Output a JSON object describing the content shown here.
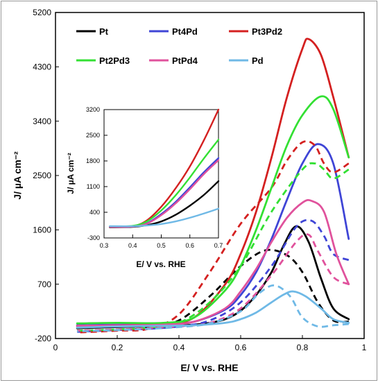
{
  "chart_data": [
    {
      "type": "line",
      "xlabel": "E/ V vs. RHE",
      "ylabel": "J/ µA cm⁻²",
      "xlim": [
        0,
        1
      ],
      "ylim": [
        -200,
        5200
      ],
      "xticks": [
        "0",
        "0.2",
        "0.4",
        "0.6",
        "0.8",
        "1"
      ],
      "yticks": [
        "-200",
        "700",
        "1600",
        "2500",
        "3400",
        "4300",
        "5200"
      ],
      "legend_placement": "top",
      "series": [
        {
          "name": "Pt",
          "color": "#000000",
          "forward": [
            [
              0.07,
              -30
            ],
            [
              0.2,
              -10
            ],
            [
              0.35,
              10
            ],
            [
              0.45,
              30
            ],
            [
              0.5,
              60
            ],
            [
              0.55,
              120
            ],
            [
              0.6,
              260
            ],
            [
              0.65,
              520
            ],
            [
              0.7,
              900
            ],
            [
              0.74,
              1350
            ],
            [
              0.78,
              1660
            ],
            [
              0.82,
              1400
            ],
            [
              0.86,
              800
            ],
            [
              0.9,
              300
            ],
            [
              0.95,
              120
            ]
          ],
          "backward": [
            [
              0.95,
              80
            ],
            [
              0.9,
              100
            ],
            [
              0.85,
              400
            ],
            [
              0.8,
              900
            ],
            [
              0.75,
              1180
            ],
            [
              0.68,
              1260
            ],
            [
              0.6,
              1000
            ],
            [
              0.5,
              500
            ],
            [
              0.4,
              100
            ],
            [
              0.3,
              -20
            ],
            [
              0.2,
              -60
            ],
            [
              0.07,
              -80
            ]
          ]
        },
        {
          "name": "Pt4Pd",
          "color": "#3f45d6",
          "forward": [
            [
              0.07,
              20
            ],
            [
              0.2,
              30
            ],
            [
              0.35,
              40
            ],
            [
              0.45,
              80
            ],
            [
              0.55,
              280
            ],
            [
              0.6,
              520
            ],
            [
              0.65,
              900
            ],
            [
              0.7,
              1450
            ],
            [
              0.75,
              2100
            ],
            [
              0.8,
              2700
            ],
            [
              0.85,
              3020
            ],
            [
              0.9,
              2700
            ],
            [
              0.95,
              1450
            ]
          ],
          "backward": [
            [
              0.95,
              1100
            ],
            [
              0.9,
              1200
            ],
            [
              0.87,
              1500
            ],
            [
              0.83,
              1750
            ],
            [
              0.78,
              1650
            ],
            [
              0.7,
              1000
            ],
            [
              0.6,
              400
            ],
            [
              0.5,
              100
            ],
            [
              0.4,
              0
            ],
            [
              0.3,
              -40
            ],
            [
              0.2,
              -60
            ],
            [
              0.07,
              -90
            ]
          ]
        },
        {
          "name": "Pt3Pd2",
          "color": "#d42020",
          "forward": [
            [
              0.07,
              0
            ],
            [
              0.2,
              20
            ],
            [
              0.35,
              40
            ],
            [
              0.45,
              150
            ],
            [
              0.55,
              700
            ],
            [
              0.6,
              1200
            ],
            [
              0.65,
              1900
            ],
            [
              0.7,
              2800
            ],
            [
              0.75,
              3800
            ],
            [
              0.8,
              4600
            ],
            [
              0.82,
              4760
            ],
            [
              0.86,
              4500
            ],
            [
              0.9,
              3800
            ],
            [
              0.95,
              2800
            ]
          ],
          "backward": [
            [
              0.95,
              2700
            ],
            [
              0.9,
              2550
            ],
            [
              0.87,
              2700
            ],
            [
              0.84,
              3000
            ],
            [
              0.8,
              3050
            ],
            [
              0.75,
              2750
            ],
            [
              0.7,
              2300
            ],
            [
              0.6,
              1700
            ],
            [
              0.5,
              900
            ],
            [
              0.4,
              200
            ],
            [
              0.3,
              -40
            ],
            [
              0.2,
              -70
            ],
            [
              0.07,
              -100
            ]
          ]
        },
        {
          "name": "Pt2Pd3",
          "color": "#33e033",
          "forward": [
            [
              0.07,
              50
            ],
            [
              0.2,
              60
            ],
            [
              0.35,
              60
            ],
            [
              0.45,
              150
            ],
            [
              0.55,
              600
            ],
            [
              0.6,
              1000
            ],
            [
              0.65,
              1600
            ],
            [
              0.7,
              2300
            ],
            [
              0.75,
              3000
            ],
            [
              0.8,
              3500
            ],
            [
              0.86,
              3810
            ],
            [
              0.9,
              3600
            ],
            [
              0.95,
              2800
            ]
          ],
          "backward": [
            [
              0.95,
              2600
            ],
            [
              0.9,
              2450
            ],
            [
              0.87,
              2600
            ],
            [
              0.84,
              2700
            ],
            [
              0.8,
              2600
            ],
            [
              0.7,
              1900
            ],
            [
              0.6,
              1000
            ],
            [
              0.5,
              400
            ],
            [
              0.4,
              60
            ],
            [
              0.3,
              -20
            ],
            [
              0.2,
              -50
            ],
            [
              0.07,
              -70
            ]
          ]
        },
        {
          "name": "PtPd4",
          "color": "#e0529c",
          "forward": [
            [
              0.07,
              10
            ],
            [
              0.2,
              20
            ],
            [
              0.35,
              30
            ],
            [
              0.45,
              80
            ],
            [
              0.55,
              300
            ],
            [
              0.6,
              580
            ],
            [
              0.65,
              950
            ],
            [
              0.7,
              1400
            ],
            [
              0.75,
              1800
            ],
            [
              0.8,
              2050
            ],
            [
              0.83,
              2080
            ],
            [
              0.87,
              1900
            ],
            [
              0.91,
              1200
            ],
            [
              0.95,
              700
            ]
          ],
          "backward": [
            [
              0.95,
              700
            ],
            [
              0.9,
              820
            ],
            [
              0.85,
              1250
            ],
            [
              0.82,
              1520
            ],
            [
              0.78,
              1400
            ],
            [
              0.7,
              850
            ],
            [
              0.6,
              300
            ],
            [
              0.5,
              60
            ],
            [
              0.4,
              0
            ],
            [
              0.3,
              -30
            ],
            [
              0.2,
              -50
            ],
            [
              0.07,
              -70
            ]
          ]
        },
        {
          "name": "Pd",
          "color": "#6fb9e6",
          "forward": [
            [
              0.07,
              -20
            ],
            [
              0.2,
              0
            ],
            [
              0.35,
              10
            ],
            [
              0.45,
              20
            ],
            [
              0.55,
              60
            ],
            [
              0.6,
              120
            ],
            [
              0.65,
              230
            ],
            [
              0.7,
              400
            ],
            [
              0.74,
              530
            ],
            [
              0.77,
              580
            ],
            [
              0.81,
              500
            ],
            [
              0.86,
              300
            ],
            [
              0.9,
              120
            ],
            [
              0.95,
              60
            ]
          ],
          "backward": [
            [
              0.95,
              40
            ],
            [
              0.9,
              20
            ],
            [
              0.85,
              0
            ],
            [
              0.8,
              150
            ],
            [
              0.76,
              500
            ],
            [
              0.71,
              680
            ],
            [
              0.66,
              550
            ],
            [
              0.6,
              250
            ],
            [
              0.5,
              50
            ],
            [
              0.4,
              -10
            ],
            [
              0.3,
              -40
            ],
            [
              0.2,
              -60
            ],
            [
              0.07,
              -80
            ]
          ]
        }
      ]
    },
    {
      "type": "line",
      "xlabel": "E/ V vs. RHE",
      "ylabel": "J/ µA cm⁻²",
      "xlim": [
        0.3,
        0.7
      ],
      "ylim": [
        -300,
        3200
      ],
      "xticks": [
        "0.3",
        "0.4",
        "0.5",
        "0.6",
        "0.7"
      ],
      "yticks": [
        "-300",
        "400",
        "1100",
        "1800",
        "2500",
        "3200"
      ],
      "series": [
        {
          "name": "Pt",
          "color": "#000000",
          "forward": [
            [
              0.32,
              -10
            ],
            [
              0.4,
              0
            ],
            [
              0.45,
              50
            ],
            [
              0.5,
              150
            ],
            [
              0.55,
              330
            ],
            [
              0.6,
              580
            ],
            [
              0.65,
              880
            ],
            [
              0.7,
              1250
            ]
          ]
        },
        {
          "name": "Pt4Pd",
          "color": "#3f45d6",
          "forward": [
            [
              0.32,
              0
            ],
            [
              0.4,
              10
            ],
            [
              0.45,
              100
            ],
            [
              0.5,
              350
            ],
            [
              0.55,
              680
            ],
            [
              0.6,
              1080
            ],
            [
              0.65,
              1500
            ],
            [
              0.7,
              1880
            ]
          ]
        },
        {
          "name": "Pt3Pd2",
          "color": "#d42020",
          "forward": [
            [
              0.32,
              0
            ],
            [
              0.4,
              20
            ],
            [
              0.45,
              180
            ],
            [
              0.5,
              550
            ],
            [
              0.55,
              1050
            ],
            [
              0.6,
              1650
            ],
            [
              0.65,
              2380
            ],
            [
              0.7,
              3200
            ]
          ]
        },
        {
          "name": "Pt2Pd3",
          "color": "#33e033",
          "forward": [
            [
              0.32,
              10
            ],
            [
              0.4,
              30
            ],
            [
              0.45,
              150
            ],
            [
              0.5,
              450
            ],
            [
              0.55,
              860
            ],
            [
              0.6,
              1350
            ],
            [
              0.65,
              1880
            ],
            [
              0.7,
              2380
            ]
          ]
        },
        {
          "name": "PtPd4",
          "color": "#e0529c",
          "forward": [
            [
              0.32,
              0
            ],
            [
              0.4,
              10
            ],
            [
              0.45,
              90
            ],
            [
              0.5,
              320
            ],
            [
              0.55,
              640
            ],
            [
              0.6,
              1030
            ],
            [
              0.65,
              1450
            ],
            [
              0.7,
              1820
            ]
          ]
        },
        {
          "name": "Pd",
          "color": "#6fb9e6",
          "forward": [
            [
              0.32,
              20
            ],
            [
              0.4,
              20
            ],
            [
              0.45,
              40
            ],
            [
              0.5,
              80
            ],
            [
              0.55,
              150
            ],
            [
              0.6,
              250
            ],
            [
              0.65,
              370
            ],
            [
              0.7,
              500
            ]
          ]
        }
      ]
    }
  ]
}
